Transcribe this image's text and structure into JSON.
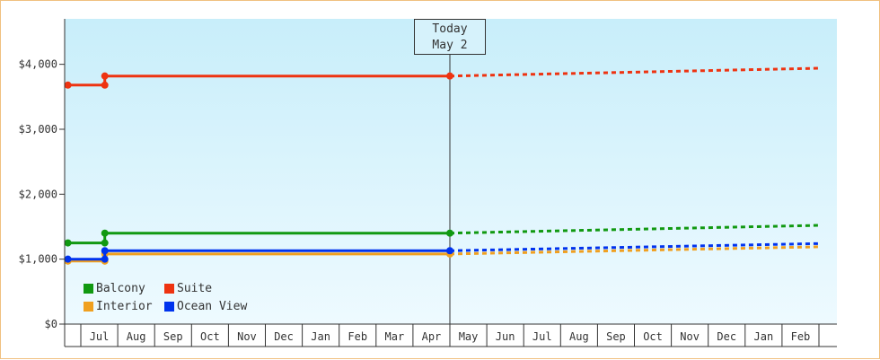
{
  "chart_data": {
    "type": "line",
    "today_label": [
      "Today",
      "May 2"
    ],
    "ylim": [
      0,
      4700
    ],
    "yticks": [
      {
        "value": 0,
        "label": "$0"
      },
      {
        "value": 1000,
        "label": "$1,000"
      },
      {
        "value": 2000,
        "label": "$2,000"
      },
      {
        "value": 3000,
        "label": "$3,000"
      },
      {
        "value": 4000,
        "label": "$4,000"
      }
    ],
    "x_months": [
      "Jul",
      "Aug",
      "Sep",
      "Oct",
      "Nov",
      "Dec",
      "Jan",
      "Feb",
      "Mar",
      "Apr",
      "May",
      "Jun",
      "Jul",
      "Aug",
      "Sep",
      "Oct",
      "Nov",
      "Dec",
      "Jan",
      "Feb"
    ],
    "x_range": [
      -0.35,
      20
    ],
    "today_x": 10.0,
    "colors": {
      "Balcony": "#119911",
      "Suite": "#ee3311",
      "Interior": "#f0a020",
      "Ocean View": "#0033ee"
    },
    "legend": {
      "placement": "bottom-left",
      "order": [
        "Balcony",
        "Suite",
        "Interior",
        "Ocean View"
      ]
    },
    "series": [
      {
        "name": "Balcony",
        "history": [
          [
            -0.35,
            1250
          ],
          [
            0.65,
            1250
          ],
          [
            0.65,
            1400
          ],
          [
            10.0,
            1400
          ]
        ],
        "points": [
          [
            -0.35,
            1250
          ],
          [
            0.65,
            1250
          ],
          [
            0.65,
            1400
          ],
          [
            10.0,
            1400
          ]
        ],
        "forecast": [
          [
            10.0,
            1400
          ],
          [
            20.0,
            1520
          ]
        ]
      },
      {
        "name": "Suite",
        "history": [
          [
            -0.35,
            3680
          ],
          [
            0.65,
            3680
          ],
          [
            0.65,
            3820
          ],
          [
            10.0,
            3820
          ]
        ],
        "points": [
          [
            -0.35,
            3680
          ],
          [
            0.65,
            3680
          ],
          [
            0.65,
            3820
          ],
          [
            10.0,
            3820
          ]
        ],
        "forecast": [
          [
            10.0,
            3820
          ],
          [
            20.0,
            3940
          ]
        ]
      },
      {
        "name": "Interior",
        "history": [
          [
            -0.35,
            970
          ],
          [
            0.65,
            970
          ],
          [
            0.65,
            1080
          ],
          [
            10.0,
            1080
          ]
        ],
        "points": [
          [
            -0.35,
            970
          ],
          [
            0.65,
            970
          ],
          [
            0.65,
            1080
          ],
          [
            10.0,
            1080
          ]
        ],
        "forecast": [
          [
            10.0,
            1080
          ],
          [
            20.0,
            1190
          ]
        ]
      },
      {
        "name": "Ocean View",
        "history": [
          [
            -0.35,
            1000
          ],
          [
            0.65,
            1000
          ],
          [
            0.65,
            1130
          ],
          [
            10.0,
            1130
          ]
        ],
        "points": [
          [
            -0.35,
            1000
          ],
          [
            0.65,
            1000
          ],
          [
            0.65,
            1130
          ],
          [
            10.0,
            1130
          ]
        ],
        "forecast": [
          [
            10.0,
            1130
          ],
          [
            20.0,
            1240
          ]
        ]
      }
    ]
  }
}
